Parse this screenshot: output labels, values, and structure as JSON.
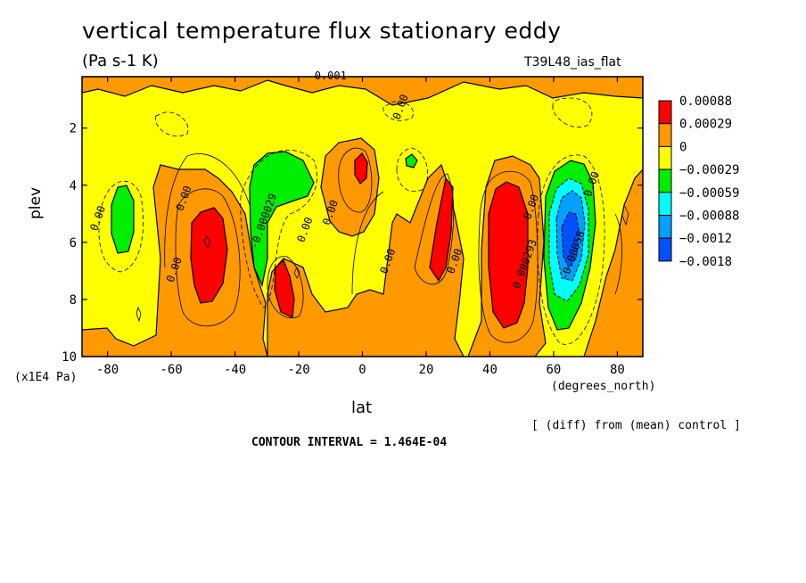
{
  "title": "vertical temperature flux stationary eddy",
  "units": "(Pa s-1 K)",
  "run_label": "T39L48_ias_flat",
  "diff_label": "[ (diff) from (mean) control ]",
  "contour_interval": "CONTOUR INTERVAL = 1.464E-04",
  "chart_data": {
    "type": "heatmap",
    "title": "vertical temperature flux stationary eddy",
    "xlabel": "lat",
    "x_units": "(degrees_north)",
    "ylabel": "plev",
    "y_units": "(x1E4 Pa)",
    "xlim": [
      -88,
      88
    ],
    "ylim": [
      10,
      0.2
    ],
    "x_ticks": [
      -80,
      -60,
      -40,
      -20,
      0,
      20,
      40,
      60,
      80
    ],
    "x_tick_labels": [
      "-80",
      "-60",
      "-40",
      "-20",
      "0",
      "20",
      "40",
      "60",
      "80"
    ],
    "y_ticks": [
      2,
      4,
      6,
      8,
      10
    ],
    "y_tick_labels": [
      "2",
      "4",
      "6",
      "8",
      "10"
    ],
    "legend": {
      "labels": [
        "0.00088",
        "0.00029",
        "0",
        "−0.00029",
        "−0.00059",
        "−0.00088",
        "−0.0012",
        "−0.0018"
      ],
      "colors": [
        "#ff0000",
        "#ff9900",
        "#ffff00",
        "#00ee00",
        "#00ffff",
        "#00a0ff",
        "#0050ff"
      ]
    },
    "contour_labels": [
      {
        "text": "0.001",
        "lat": -10,
        "p": 0.3
      },
      {
        "text": "0.00",
        "lat": 13,
        "p": 1.3
      },
      {
        "text": "0.00",
        "lat": -82,
        "p": 5.2
      },
      {
        "text": "0.00",
        "lat": -55,
        "p": 4.5
      },
      {
        "text": "0.00",
        "lat": -58,
        "p": 7.0
      },
      {
        "text": "-0.000029",
        "lat": -30,
        "p": 5.3
      },
      {
        "text": "0.00",
        "lat": -17,
        "p": 5.6
      },
      {
        "text": "0.00",
        "lat": -9,
        "p": 5.0
      },
      {
        "text": "0.00",
        "lat": 9,
        "p": 6.7
      },
      {
        "text": "0.00",
        "lat": 30,
        "p": 6.7
      },
      {
        "text": "0.000293",
        "lat": 52,
        "p": 6.8
      },
      {
        "text": "0.00",
        "lat": 54,
        "p": 4.8
      },
      {
        "text": "-0.00058",
        "lat": 67,
        "p": 6.5
      },
      {
        "text": "0.00",
        "lat": 73,
        "p": 4.0
      }
    ]
  }
}
